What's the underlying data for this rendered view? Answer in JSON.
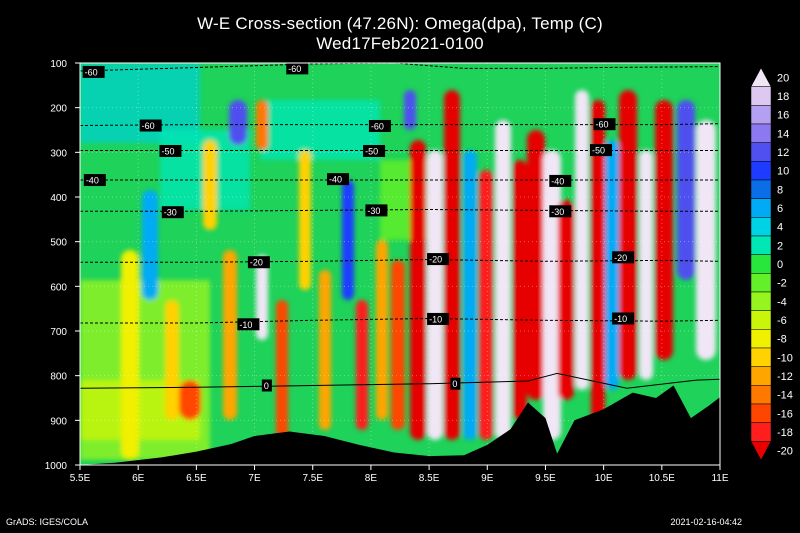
{
  "title_line1": "W-E Cross-section (47.26N): Omega(dpa), Temp (C)",
  "title_line2": "Wed17Feb2021-0100",
  "footer_left": "GrADS: IGES/COLA",
  "footer_right": "2021-02-16-04:42",
  "colors": {
    "terrain": "#000000",
    "contour": "#000000",
    "frame": "#ffffff"
  },
  "chart_data": {
    "type": "heatmap",
    "xlim": [
      5.5,
      11
    ],
    "ylim": [
      1000,
      100
    ],
    "x_ticks": [
      {
        "value": 5.5,
        "label": "5.5E"
      },
      {
        "value": 6,
        "label": "6E"
      },
      {
        "value": 6.5,
        "label": "6.5E"
      },
      {
        "value": 7,
        "label": "7E"
      },
      {
        "value": 7.5,
        "label": "7.5E"
      },
      {
        "value": 8,
        "label": "8E"
      },
      {
        "value": 8.5,
        "label": "8.5E"
      },
      {
        "value": 9,
        "label": "9E"
      },
      {
        "value": 9.5,
        "label": "9.5E"
      },
      {
        "value": 10,
        "label": "10E"
      },
      {
        "value": 10.5,
        "label": "10.5E"
      },
      {
        "value": 11,
        "label": "11E"
      }
    ],
    "y_ticks": [
      {
        "value": 100,
        "label": "100"
      },
      {
        "value": 200,
        "label": "200"
      },
      {
        "value": 300,
        "label": "300"
      },
      {
        "value": 400,
        "label": "400"
      },
      {
        "value": 500,
        "label": "500"
      },
      {
        "value": 600,
        "label": "600"
      },
      {
        "value": 700,
        "label": "700"
      },
      {
        "value": 800,
        "label": "800"
      },
      {
        "value": 900,
        "label": "900"
      },
      {
        "value": 1000,
        "label": "1000"
      }
    ],
    "colorbar": {
      "levels": [
        "20",
        "18",
        "16",
        "14",
        "12",
        "10",
        "8",
        "6",
        "4",
        "2",
        "0",
        "-2",
        "-4",
        "-6",
        "-8",
        "-10",
        "-12",
        "-14",
        "-16",
        "-18",
        "-20"
      ],
      "colors": [
        "#f0e6f5",
        "#dcc8f0",
        "#b4a0f0",
        "#8c78f0",
        "#5050f0",
        "#1e3cff",
        "#0a6ee6",
        "#00aaf5",
        "#00d2e6",
        "#00e6b4",
        "#28e63c",
        "#64f028",
        "#96f51e",
        "#c8f50a",
        "#f0f000",
        "#ffd200",
        "#ffa500",
        "#ff7800",
        "#ff4600",
        "#ff1e1e",
        "#e60000"
      ]
    },
    "temperature_isotherms": [
      {
        "label": "-60",
        "p": [
          [
            5.5,
            118
          ],
          [
            6.5,
            110
          ],
          [
            7.5,
            102
          ],
          [
            8.2,
            100
          ],
          [
            8.8,
            112
          ],
          [
            9.5,
            112
          ],
          [
            10,
            110
          ],
          [
            11,
            108
          ]
        ],
        "label_at": [
          [
            5.54,
            120
          ],
          [
            7.29,
            112
          ]
        ]
      },
      {
        "label": "-60",
        "p": [
          [
            5.5,
            240
          ],
          [
            6.5,
            238
          ],
          [
            7.5,
            238
          ],
          [
            8.5,
            238
          ],
          [
            9.5,
            238
          ],
          [
            10.5,
            238
          ],
          [
            11,
            236
          ]
        ],
        "label_at": [
          [
            6.03,
            240
          ],
          [
            8.0,
            241
          ],
          [
            9.93,
            237
          ]
        ]
      },
      {
        "label": "-50",
        "p": [
          [
            5.5,
            296
          ],
          [
            6.5,
            296
          ],
          [
            7.5,
            296
          ],
          [
            8.5,
            296
          ],
          [
            9.5,
            296
          ],
          [
            10.5,
            296
          ],
          [
            11,
            296
          ]
        ],
        "label_at": [
          [
            6.2,
            297
          ],
          [
            7.95,
            297
          ],
          [
            9.9,
            295
          ]
        ]
      },
      {
        "label": "-40",
        "p": [
          [
            5.5,
            362
          ],
          [
            6.5,
            362
          ],
          [
            7.5,
            362
          ],
          [
            8.5,
            362
          ],
          [
            9.5,
            362
          ],
          [
            10.5,
            362
          ],
          [
            11,
            362
          ]
        ],
        "label_at": [
          [
            5.55,
            362
          ],
          [
            7.64,
            360
          ],
          [
            9.55,
            364
          ]
        ]
      },
      {
        "label": "-30",
        "p": [
          [
            5.5,
            432
          ],
          [
            6.5,
            432
          ],
          [
            7.5,
            430
          ],
          [
            8.5,
            428
          ],
          [
            9.5,
            430
          ],
          [
            10.5,
            432
          ],
          [
            11,
            432
          ]
        ],
        "label_at": [
          [
            6.22,
            434
          ],
          [
            7.97,
            430
          ],
          [
            9.55,
            432
          ]
        ]
      },
      {
        "label": "-20",
        "p": [
          [
            5.5,
            546
          ],
          [
            6.5,
            546
          ],
          [
            7.5,
            544
          ],
          [
            8.5,
            540
          ],
          [
            9.5,
            544
          ],
          [
            10.5,
            542
          ],
          [
            11,
            544
          ]
        ],
        "label_at": [
          [
            6.96,
            546
          ],
          [
            8.5,
            539
          ],
          [
            10.09,
            535
          ]
        ]
      },
      {
        "label": "-10",
        "p": [
          [
            5.5,
            682
          ],
          [
            6.5,
            682
          ],
          [
            7.5,
            676
          ],
          [
            8.5,
            672
          ],
          [
            9.5,
            676
          ],
          [
            10.5,
            678
          ],
          [
            11,
            676
          ]
        ],
        "label_at": [
          [
            6.87,
            685
          ],
          [
            8.5,
            673
          ],
          [
            10.09,
            672
          ]
        ]
      },
      {
        "label": "0",
        "p": [
          [
            5.5,
            828
          ],
          [
            6.5,
            826
          ],
          [
            7.5,
            822
          ],
          [
            8.5,
            818
          ],
          [
            9.35,
            812
          ],
          [
            9.6,
            795
          ],
          [
            10.2,
            828
          ],
          [
            10.8,
            810
          ],
          [
            11,
            808
          ]
        ],
        "label_at": [
          [
            7.08,
            822
          ],
          [
            8.7,
            818
          ]
        ]
      }
    ],
    "terrain_surface": [
      [
        5.5,
        1000
      ],
      [
        5.8,
        995
      ],
      [
        6.2,
        983
      ],
      [
        6.5,
        970
      ],
      [
        6.8,
        953
      ],
      [
        7.0,
        935
      ],
      [
        7.3,
        925
      ],
      [
        7.6,
        935
      ],
      [
        7.9,
        955
      ],
      [
        8.2,
        972
      ],
      [
        8.5,
        980
      ],
      [
        8.8,
        978
      ],
      [
        9.0,
        955
      ],
      [
        9.2,
        920
      ],
      [
        9.35,
        860
      ],
      [
        9.5,
        895
      ],
      [
        9.6,
        975
      ],
      [
        9.75,
        900
      ],
      [
        10.0,
        875
      ],
      [
        10.25,
        838
      ],
      [
        10.45,
        850
      ],
      [
        10.6,
        822
      ],
      [
        10.75,
        895
      ],
      [
        10.9,
        868
      ],
      [
        11,
        848
      ]
    ]
  }
}
